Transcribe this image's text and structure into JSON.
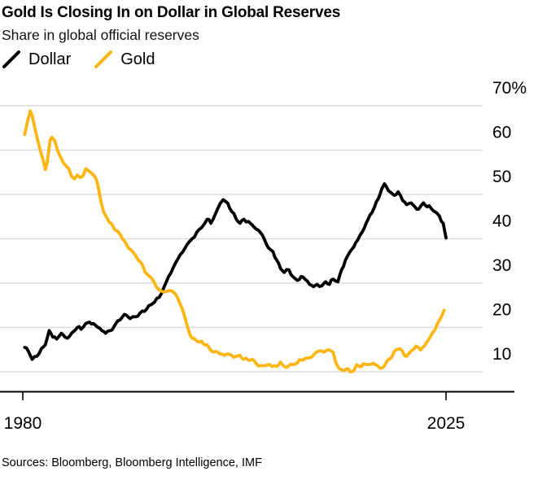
{
  "header": {
    "title": "Gold Is Closing In on Dollar in Global Reserves",
    "subtitle": "Share in global official reserves"
  },
  "legend": {
    "items": [
      {
        "label": "Dollar",
        "color": "#000000"
      },
      {
        "label": "Gold",
        "color": "#FBB614"
      }
    ]
  },
  "footer": {
    "sources": "Sources: Bloomberg, Bloomberg Intelligence, IMF"
  },
  "chart_data": {
    "type": "line",
    "title": "Gold Is Closing In on Dollar in Global Reserves",
    "subtitle": "Share in global official reserves",
    "xlabel": "",
    "ylabel": "Share in global official reserves (%)",
    "x_axis": {
      "range": [
        1980,
        2025
      ],
      "tick_years": [
        1980,
        2025
      ],
      "tick_labels": [
        "1980",
        "2025"
      ]
    },
    "y_axis": {
      "unit": "%",
      "tick_values": [
        70,
        60,
        50,
        40,
        30,
        20,
        10
      ],
      "tick_labels": [
        "70%",
        "60",
        "50",
        "40",
        "30",
        "20",
        "10"
      ],
      "drawn_range": [
        5.4,
        76
      ]
    },
    "grid": true,
    "legend_position": "top-left",
    "colors": {
      "dollar": "#000000",
      "gold": "#FBB614",
      "gridline": "#dcdcdc",
      "axis": "#000000"
    },
    "series": [
      {
        "name": "Dollar",
        "color": "#000000",
        "points": [
          [
            1980.2,
            15.5
          ],
          [
            1980.6,
            14.6
          ],
          [
            1981,
            12.8
          ],
          [
            1981.5,
            13.5
          ],
          [
            1982,
            15.3
          ],
          [
            1982.4,
            16.1
          ],
          [
            1982.8,
            19.3
          ],
          [
            1983.2,
            17.8
          ],
          [
            1983.6,
            17.4
          ],
          [
            1984.1,
            18.7
          ],
          [
            1984.5,
            17.8
          ],
          [
            1985,
            18.1
          ],
          [
            1985.4,
            19.1
          ],
          [
            1985.8,
            20
          ],
          [
            1986.2,
            19.6
          ],
          [
            1986.7,
            20.9
          ],
          [
            1987.1,
            21.2
          ],
          [
            1987.5,
            20.9
          ],
          [
            1988,
            20
          ],
          [
            1988.4,
            19.3
          ],
          [
            1988.8,
            18.7
          ],
          [
            1989.3,
            19.3
          ],
          [
            1989.7,
            20.2
          ],
          [
            1990.1,
            21.5
          ],
          [
            1990.6,
            22.4
          ],
          [
            1991,
            22.8
          ],
          [
            1991.4,
            22
          ],
          [
            1992,
            22.4
          ],
          [
            1992.7,
            23.7
          ],
          [
            1993.2,
            24.2
          ],
          [
            1993.6,
            25.1
          ],
          [
            1994,
            25.7
          ],
          [
            1994.5,
            26.8
          ],
          [
            1995,
            29
          ],
          [
            1995.5,
            31.5
          ],
          [
            1996,
            33.5
          ],
          [
            1996.5,
            35.5
          ],
          [
            1997,
            37
          ],
          [
            1997.5,
            38.8
          ],
          [
            1998,
            40
          ],
          [
            1998.5,
            41.5
          ],
          [
            1999,
            42.5
          ],
          [
            1999.6,
            44.4
          ],
          [
            2000,
            43.5
          ],
          [
            2000.5,
            45.7
          ],
          [
            2001,
            48
          ],
          [
            2001.3,
            48.8
          ],
          [
            2001.8,
            48
          ],
          [
            2002.2,
            46.2
          ],
          [
            2002.7,
            44.4
          ],
          [
            2003.1,
            43.5
          ],
          [
            2003.5,
            44.4
          ],
          [
            2004,
            43.9
          ],
          [
            2004.4,
            43.1
          ],
          [
            2004.8,
            42.2
          ],
          [
            2005.3,
            41.3
          ],
          [
            2005.7,
            39.8
          ],
          [
            2006.1,
            38
          ],
          [
            2006.6,
            37.1
          ],
          [
            2007,
            35.2
          ],
          [
            2007.4,
            33.3
          ],
          [
            2007.8,
            32.4
          ],
          [
            2008.3,
            33
          ],
          [
            2008.7,
            31.5
          ],
          [
            2009.2,
            30.6
          ],
          [
            2009.6,
            31.5
          ],
          [
            2010,
            30.9
          ],
          [
            2010.5,
            29.7
          ],
          [
            2010.9,
            29.2
          ],
          [
            2011.3,
            29.7
          ],
          [
            2011.8,
            29.4
          ],
          [
            2012.2,
            30.3
          ],
          [
            2012.6,
            29.7
          ],
          [
            2013,
            30.9
          ],
          [
            2013.5,
            30.3
          ],
          [
            2013.9,
            33
          ],
          [
            2014.3,
            35.2
          ],
          [
            2014.8,
            37.1
          ],
          [
            2015.2,
            38.2
          ],
          [
            2015.6,
            39.7
          ],
          [
            2016.1,
            41.6
          ],
          [
            2016.5,
            43.5
          ],
          [
            2016.9,
            45.3
          ],
          [
            2017.4,
            47.2
          ],
          [
            2017.8,
            49
          ],
          [
            2018.2,
            51.4
          ],
          [
            2018.45,
            52.4
          ],
          [
            2019.1,
            50.5
          ],
          [
            2019.5,
            49.8
          ],
          [
            2019.9,
            50.6
          ],
          [
            2020.4,
            48.6
          ],
          [
            2020.8,
            47.7
          ],
          [
            2021.3,
            48.1
          ],
          [
            2021.7,
            47.2
          ],
          [
            2022.1,
            46.7
          ],
          [
            2022.6,
            48.1
          ],
          [
            2023,
            47.2
          ],
          [
            2023.4,
            46.9
          ],
          [
            2023.9,
            46
          ],
          [
            2024.3,
            45.1
          ],
          [
            2024.7,
            43.5
          ],
          [
            2025,
            40.2
          ]
        ]
      },
      {
        "name": "Gold",
        "color": "#FBB614",
        "points": [
          [
            1980.2,
            63.5
          ],
          [
            1980.5,
            66.5
          ],
          [
            1980.8,
            68.8
          ],
          [
            1981,
            67.8
          ],
          [
            1981.3,
            64.8
          ],
          [
            1981.6,
            62.1
          ],
          [
            1981.9,
            59.6
          ],
          [
            1982.2,
            57.5
          ],
          [
            1982.4,
            55.6
          ],
          [
            1982.6,
            57.2
          ],
          [
            1982.9,
            62.2
          ],
          [
            1983.1,
            62.9
          ],
          [
            1983.4,
            62.1
          ],
          [
            1983.7,
            59.9
          ],
          [
            1984,
            58.5
          ],
          [
            1984.3,
            57.2
          ],
          [
            1984.6,
            56.4
          ],
          [
            1984.9,
            55.8
          ],
          [
            1985.2,
            54
          ],
          [
            1985.5,
            53.5
          ],
          [
            1985.8,
            54.4
          ],
          [
            1986.1,
            53.8
          ],
          [
            1986.4,
            54.2
          ],
          [
            1986.7,
            55.8
          ],
          [
            1987,
            55.3
          ],
          [
            1987.3,
            54.8
          ],
          [
            1987.6,
            54.2
          ],
          [
            1988,
            52
          ],
          [
            1988.3,
            48.5
          ],
          [
            1988.6,
            46
          ],
          [
            1989,
            44.5
          ],
          [
            1989.4,
            43.5
          ],
          [
            1989.8,
            42
          ],
          [
            1990.2,
            41.4
          ],
          [
            1990.6,
            40
          ],
          [
            1991,
            38.8
          ],
          [
            1991.5,
            37.5
          ],
          [
            1992,
            36.2
          ],
          [
            1992.5,
            34.8
          ],
          [
            1993,
            32.5
          ],
          [
            1993.5,
            31.5
          ],
          [
            1994,
            30
          ],
          [
            1994.5,
            28.5
          ],
          [
            1995,
            28
          ],
          [
            1995.5,
            28.3
          ],
          [
            1996,
            28
          ],
          [
            1996.5,
            26.5
          ],
          [
            1997,
            24
          ],
          [
            1997.3,
            21.8
          ],
          [
            1997.6,
            19.5
          ],
          [
            1998,
            17.6
          ],
          [
            1998.4,
            17.1
          ],
          [
            1998.8,
            16.7
          ],
          [
            1999.2,
            16.3
          ],
          [
            1999.6,
            16.1
          ],
          [
            2000,
            14.8
          ],
          [
            2000.5,
            14.6
          ],
          [
            2001,
            14
          ],
          [
            2001.4,
            13.7
          ],
          [
            2001.8,
            14
          ],
          [
            2002.2,
            13.7
          ],
          [
            2002.7,
            13.5
          ],
          [
            2003.1,
            13.7
          ],
          [
            2003.5,
            12.8
          ],
          [
            2004,
            12.6
          ],
          [
            2004.4,
            12.8
          ],
          [
            2004.8,
            11.9
          ],
          [
            2005.3,
            11.4
          ],
          [
            2005.7,
            11.4
          ],
          [
            2006.1,
            11.6
          ],
          [
            2006.5,
            11.2
          ],
          [
            2007,
            11.2
          ],
          [
            2007.4,
            12.2
          ],
          [
            2007.8,
            11.2
          ],
          [
            2008.3,
            11.4
          ],
          [
            2008.7,
            11.6
          ],
          [
            2009.2,
            12
          ],
          [
            2009.6,
            12.7
          ],
          [
            2010,
            13
          ],
          [
            2010.5,
            13.2
          ],
          [
            2011,
            14
          ],
          [
            2011.5,
            14.7
          ],
          [
            2012,
            14.4
          ],
          [
            2012.5,
            15
          ],
          [
            2013,
            14.4
          ],
          [
            2013.3,
            12
          ],
          [
            2013.6,
            10.8
          ],
          [
            2014,
            10.3
          ],
          [
            2014.4,
            10.6
          ],
          [
            2014.8,
            10
          ],
          [
            2015.2,
            10.3
          ],
          [
            2015.5,
            11.6
          ],
          [
            2015.8,
            11.2
          ],
          [
            2016.2,
            11.8
          ],
          [
            2016.7,
            11.6
          ],
          [
            2017.1,
            11.8
          ],
          [
            2017.5,
            11.6
          ],
          [
            2018,
            10.8
          ],
          [
            2018.4,
            11.2
          ],
          [
            2018.8,
            12.7
          ],
          [
            2019.3,
            13.6
          ],
          [
            2019.7,
            15
          ],
          [
            2020.1,
            15.2
          ],
          [
            2020.6,
            13.6
          ],
          [
            2021,
            14
          ],
          [
            2021.4,
            14.9
          ],
          [
            2021.8,
            15.8
          ],
          [
            2022.3,
            14.9
          ],
          [
            2022.7,
            15.8
          ],
          [
            2023.1,
            17.1
          ],
          [
            2023.6,
            18.9
          ],
          [
            2024,
            20.4
          ],
          [
            2024.4,
            22
          ],
          [
            2024.8,
            23.9
          ]
        ]
      }
    ]
  }
}
